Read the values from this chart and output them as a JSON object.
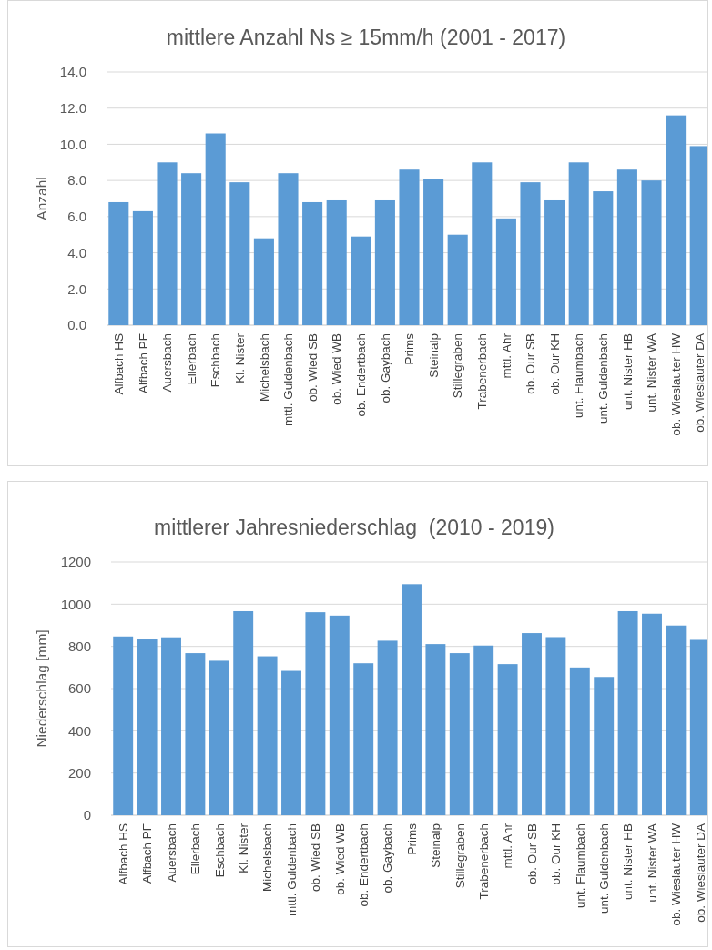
{
  "chart_data": [
    {
      "type": "bar",
      "title": "mittlere Anzahl Ns ≥ 15mm/h (2001 - 2017)",
      "ylabel": "Anzahl",
      "categories": [
        "Alfbach HS",
        "Alfbach PF",
        "Auersbach",
        "Ellerbach",
        "Eschbach",
        "Kl. Nister",
        "Michelsbach",
        "mttl. Guldenbach",
        "ob. Wied SB",
        "ob. Wied WB",
        "ob. Endertbach",
        "ob. Gaybach",
        "Prims",
        "Steinalp",
        "Stillegraben",
        "Trabenerbach",
        "mttl. Ahr",
        "ob. Our SB",
        "ob. Our KH",
        "unt. Flaumbach",
        "unt. Guldenbach",
        "unt. Nister HB",
        "unt. Nister WA",
        "ob. Wieslauter HW",
        "ob. Wieslauter DA"
      ],
      "values": [
        6.8,
        6.3,
        9.0,
        8.4,
        10.6,
        7.9,
        4.8,
        8.4,
        6.8,
        6.9,
        4.9,
        6.9,
        8.6,
        8.1,
        5.0,
        9.0,
        5.9,
        7.9,
        6.9,
        9.0,
        7.4,
        8.6,
        8.0,
        11.6,
        9.9
      ],
      "color": "#5b9bd5",
      "ylim": [
        0,
        14
      ],
      "yticks": [
        {
          "value": 0,
          "label": "0.0"
        },
        {
          "value": 2,
          "label": "2.0"
        },
        {
          "value": 4,
          "label": "4.0"
        },
        {
          "value": 6,
          "label": "6.0"
        },
        {
          "value": 8,
          "label": "8.0"
        },
        {
          "value": 10,
          "label": "10.0"
        },
        {
          "value": 12,
          "label": "12.0"
        },
        {
          "value": 14,
          "label": "14.0"
        }
      ],
      "grid": "y"
    },
    {
      "type": "bar",
      "title": "mittlerer Jahresniederschlag  (2010 - 2019)",
      "ylabel": "Niederschlag [mm]",
      "categories": [
        "Alfbach HS",
        "Alfbach PF",
        "Auersbach",
        "Ellerbach",
        "Eschbach",
        "Kl. Nister",
        "Michelsbach",
        "mttl. Guldenbach",
        "ob. Wied SB",
        "ob. Wied WB",
        "ob. Endertbach",
        "ob. Gaybach",
        "Prims",
        "Steinalp",
        "Stillegraben",
        "Trabenerbach",
        "mttl. Ahr",
        "ob. Our SB",
        "ob. Our KH",
        "unt. Flaumbach",
        "unt. Guldenbach",
        "unt. Nister HB",
        "unt. Nister WA",
        "ob. Wieslauter HW",
        "ob. Wieslauter DA"
      ],
      "values": [
        847,
        833,
        843,
        768,
        732,
        967,
        753,
        684,
        962,
        946,
        720,
        827,
        1095,
        811,
        768,
        804,
        716,
        863,
        844,
        700,
        655,
        967,
        955,
        899,
        831
      ],
      "color": "#5b9bd5",
      "ylim": [
        0,
        1200
      ],
      "yticks": [
        0,
        200,
        400,
        600,
        800,
        1000,
        1200
      ],
      "grid": "y"
    }
  ]
}
